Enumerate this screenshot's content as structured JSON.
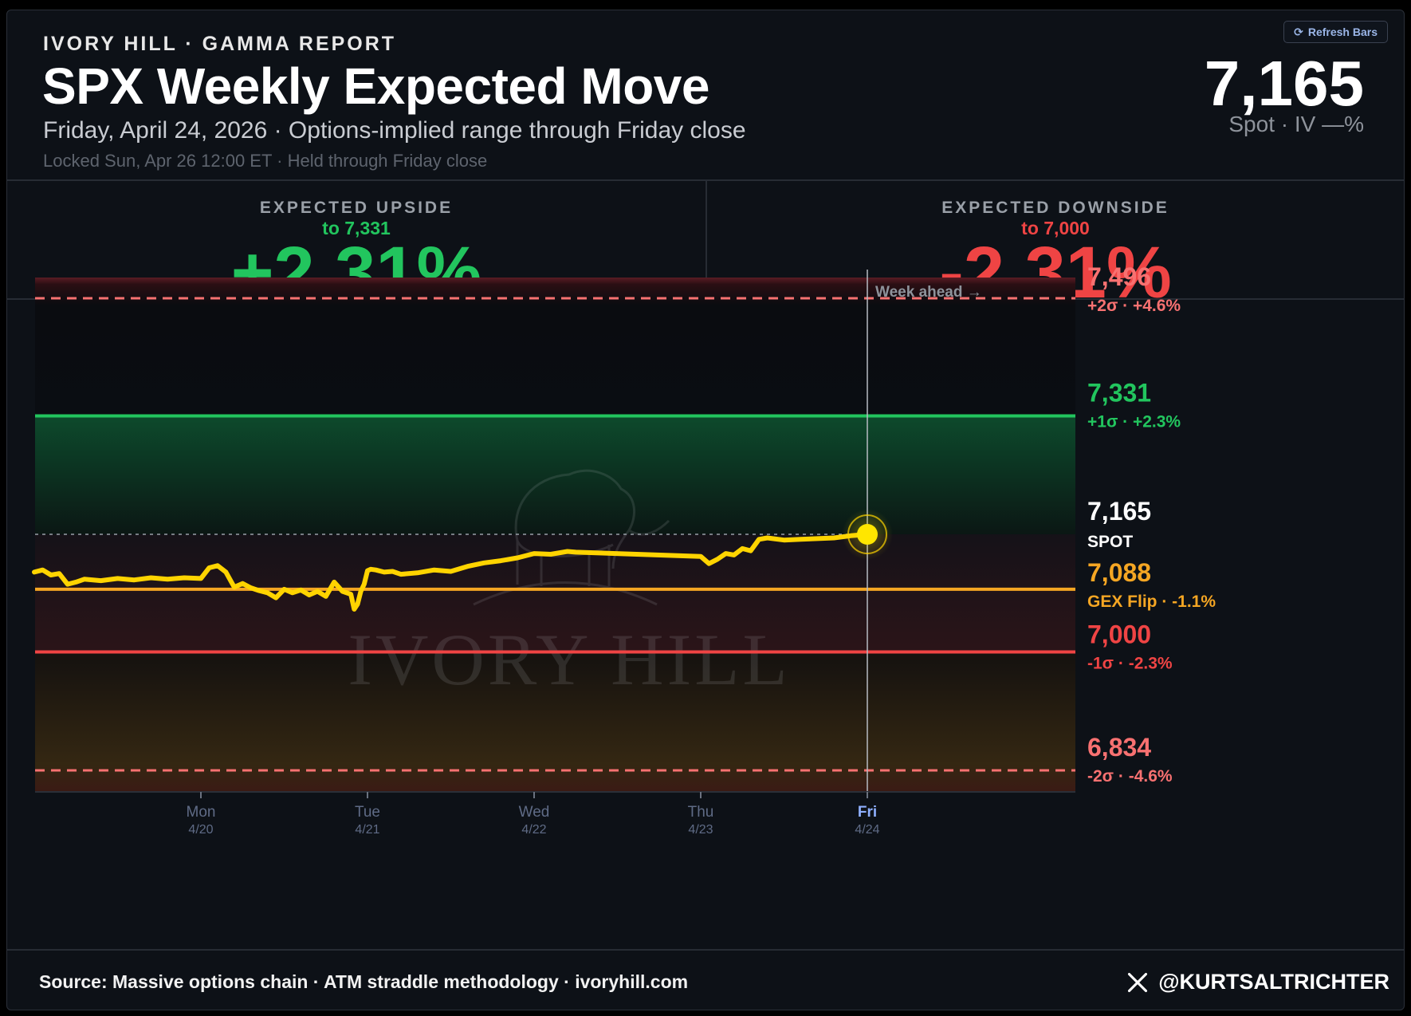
{
  "header": {
    "brand": "IVORY HILL · GAMMA REPORT",
    "title": "SPX Weekly Expected Move",
    "subtitle": "Friday, April 24, 2026 · Options-implied range through Friday close",
    "locked": "Locked Sun, Apr 26 12:00 ET · Held through Friday close",
    "refresh_label": "Refresh Bars",
    "spot_value": "7,165",
    "spot_sub": "Spot · IV —%"
  },
  "stats": {
    "upside": {
      "label": "EXPECTED UPSIDE",
      "to": "to 7,331",
      "value": "+2.31%"
    },
    "downside": {
      "label": "EXPECTED DOWNSIDE",
      "to": "to 7,000",
      "value": "-2.31%"
    }
  },
  "chart_data": {
    "type": "line",
    "ylim": [
      6820,
      7515
    ],
    "x_ticks": [
      {
        "day": "Mon",
        "date": "4/20"
      },
      {
        "day": "Tue",
        "date": "4/21"
      },
      {
        "day": "Wed",
        "date": "4/22"
      },
      {
        "day": "Thu",
        "date": "4/23"
      },
      {
        "day": "Fri",
        "date": "4/24"
      }
    ],
    "week_ahead_label": "Week ahead →",
    "watermark": "IVORY HILL",
    "levels": [
      {
        "value": 7496,
        "label": "7,496",
        "sub": "+2σ · +4.6%",
        "color": "#f87171",
        "style": "dashed"
      },
      {
        "value": 7331,
        "label": "7,331",
        "sub": "+1σ · +2.3%",
        "color": "#22c55e",
        "style": "solid"
      },
      {
        "value": 7165,
        "label": "7,165",
        "sub": "SPOT",
        "color": "#ffffff",
        "style": "dotted"
      },
      {
        "value": 7088,
        "label": "7,088",
        "sub": "GEX Flip · -1.1%",
        "color": "#f5a623",
        "style": "solid"
      },
      {
        "value": 7000,
        "label": "7,000",
        "sub": "-1σ · -2.3%",
        "color": "#ef4444",
        "style": "solid"
      },
      {
        "value": 6834,
        "label": "6,834",
        "sub": "-2σ · -4.6%",
        "color": "#f87171",
        "style": "dashed"
      }
    ],
    "series": [
      {
        "x": [
          -1.0,
          -0.95,
          -0.9,
          -0.85,
          -0.8,
          -0.75,
          -0.7,
          -0.6,
          -0.5,
          -0.4,
          -0.3,
          -0.2,
          -0.1,
          0.0,
          0.05,
          0.1,
          0.15,
          0.2,
          0.25,
          0.3,
          0.35,
          0.4,
          0.45,
          0.5,
          0.55,
          0.6,
          0.65,
          0.7,
          0.75,
          0.8,
          0.85,
          0.9,
          0.92,
          0.94,
          0.96,
          0.98,
          1.0,
          1.02,
          1.05,
          1.1,
          1.15,
          1.2,
          1.3,
          1.4,
          1.5,
          1.6,
          1.7,
          1.8,
          1.9,
          2.0,
          2.1,
          2.2,
          2.25,
          3.0,
          3.05,
          3.1,
          3.15,
          3.2,
          3.25,
          3.3,
          3.35,
          3.4,
          3.5,
          3.6,
          3.7,
          3.8,
          3.9,
          4.0
        ],
        "y": [
          7112,
          7115,
          7108,
          7110,
          7095,
          7098,
          7102,
          7100,
          7103,
          7101,
          7104,
          7102,
          7104,
          7103,
          7118,
          7121,
          7112,
          7091,
          7096,
          7090,
          7086,
          7083,
          7076,
          7088,
          7083,
          7087,
          7080,
          7085,
          7078,
          7098,
          7085,
          7081,
          7060,
          7067,
          7085,
          7095,
          7114,
          7116,
          7115,
          7112,
          7113,
          7109,
          7111,
          7115,
          7113,
          7120,
          7125,
          7128,
          7132,
          7138,
          7137,
          7141,
          7140,
          7134,
          7124,
          7130,
          7138,
          7136,
          7145,
          7142,
          7158,
          7160,
          7157,
          7158,
          7159,
          7160,
          7163,
          7165
        ]
      }
    ]
  },
  "footer": {
    "source": "Source: Massive options chain · ATM straddle methodology · ivoryhill.com",
    "handle": "@KURTSALTRICHTER"
  }
}
